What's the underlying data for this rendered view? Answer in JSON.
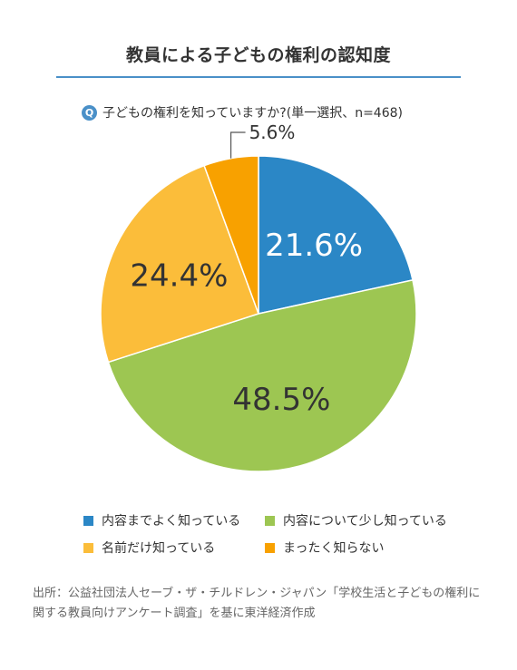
{
  "title": "教員による子どもの権利の認知度",
  "question": {
    "icon": "Q",
    "text": "子どもの権利を知っていますか?(単一選択、n=468)"
  },
  "chart_data": {
    "type": "pie",
    "unit": "%",
    "slices": [
      {
        "label": "内容までよく知っている",
        "value": 21.6,
        "display": "21.6%",
        "color": "#2b87c6"
      },
      {
        "label": "内容について少し知っている",
        "value": 48.5,
        "display": "48.5%",
        "color": "#9dc652"
      },
      {
        "label": "名前だけ知っている",
        "value": 24.4,
        "display": "24.4%",
        "color": "#fbbd3a"
      },
      {
        "label": "まったく知らない",
        "value": 5.6,
        "display": "5.6%",
        "color": "#f8a100"
      }
    ]
  },
  "source": "出所：公益社団法人セーブ・ザ・チルドレン・ジャパン「学校生活と子どもの権利に関する教員向けアンケート調査」を基に東洋経済作成"
}
